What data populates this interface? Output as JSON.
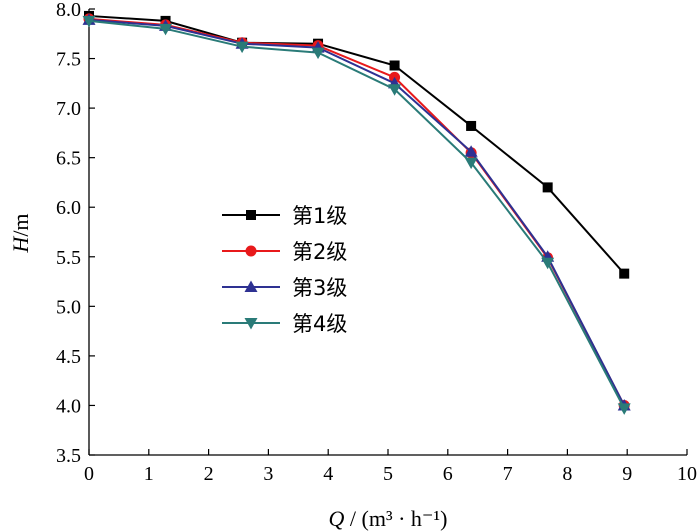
{
  "chart_data": {
    "type": "line",
    "title": "",
    "xlabel": {
      "var": "Q",
      "sep": " / ",
      "unit": "(m³ · h⁻¹)"
    },
    "ylabel": {
      "var": "H",
      "sep": "/",
      "unit": "m"
    },
    "xlim": [
      0,
      10
    ],
    "ylim": [
      3.5,
      8.0
    ],
    "xticks": [
      0,
      1,
      2,
      3,
      4,
      5,
      6,
      7,
      8,
      9,
      10
    ],
    "yticks": [
      "3.5",
      "4.0",
      "4.5",
      "5.0",
      "5.5",
      "6.0",
      "6.5",
      "7.0",
      "7.5",
      "8.0"
    ],
    "grid": false,
    "legend_position": "center-left",
    "x": [
      0,
      1.28,
      2.56,
      3.83,
      5.11,
      6.39,
      7.67,
      8.95
    ],
    "series": [
      {
        "name": "第1级",
        "color": "#000000",
        "marker": "square",
        "values": [
          7.93,
          7.88,
          7.66,
          7.65,
          7.43,
          6.82,
          6.2,
          5.33
        ]
      },
      {
        "name": "第2级",
        "color": "#e8191b",
        "marker": "circle",
        "values": [
          7.9,
          7.84,
          7.66,
          7.63,
          7.31,
          6.55,
          5.49,
          4.0
        ]
      },
      {
        "name": "第3级",
        "color": "#2e3192",
        "marker": "triangle-up",
        "values": [
          7.89,
          7.83,
          7.65,
          7.61,
          7.25,
          6.56,
          5.5,
          4.0
        ]
      },
      {
        "name": "第4级",
        "color": "#2a7b78",
        "marker": "triangle-down",
        "values": [
          7.88,
          7.8,
          7.62,
          7.56,
          7.19,
          6.45,
          5.44,
          3.97
        ]
      }
    ]
  }
}
